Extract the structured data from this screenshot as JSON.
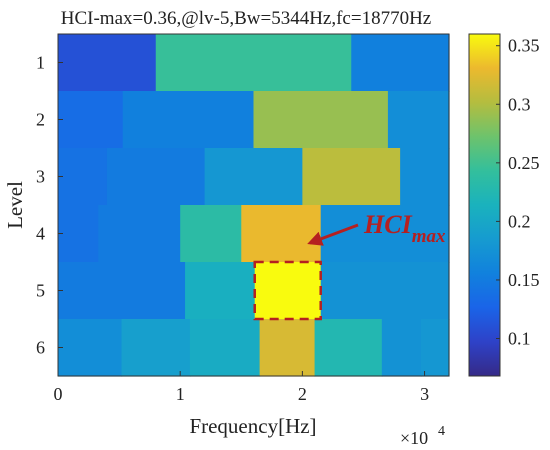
{
  "chart_data": {
    "type": "heatmap",
    "title": "HCI-max=0.36,@lv-5,Bw=5344Hz,fc=18770Hz",
    "xlabel": "Frequency[Hz]",
    "ylabel": "Level",
    "x_multiplier_label": "×10",
    "x_multiplier_exponent": "4",
    "xlim": [
      0,
      32000
    ],
    "ylim": [
      0.5,
      6.5
    ],
    "xticks": [
      {
        "value": 0,
        "label": "0"
      },
      {
        "value": 10000,
        "label": "1"
      },
      {
        "value": 20000,
        "label": "2"
      },
      {
        "value": 30000,
        "label": "3"
      }
    ],
    "yticks": [
      {
        "value": 1,
        "label": "1"
      },
      {
        "value": 2,
        "label": "2"
      },
      {
        "value": 3,
        "label": "3"
      },
      {
        "value": 4,
        "label": "4"
      },
      {
        "value": 5,
        "label": "5"
      },
      {
        "value": 6,
        "label": "6"
      }
    ],
    "colorbar": {
      "colormap": "parula",
      "range": [
        0.068,
        0.36
      ],
      "ticks": [
        {
          "value": 0.1,
          "label": "0.1"
        },
        {
          "value": 0.15,
          "label": "0.15"
        },
        {
          "value": 0.2,
          "label": "0.2"
        },
        {
          "value": 0.25,
          "label": "0.25"
        },
        {
          "value": 0.3,
          "label": "0.3"
        },
        {
          "value": 0.35,
          "label": "0.35"
        }
      ]
    },
    "levels": [
      {
        "level": 1,
        "cells": [
          {
            "x0": 0,
            "x1": 8000,
            "value": 0.11
          },
          {
            "x0": 8000,
            "x1": 24000,
            "value": 0.245
          },
          {
            "x0": 24000,
            "x1": 32000,
            "value": 0.155
          }
        ]
      },
      {
        "level": 2,
        "cells": [
          {
            "x0": 0,
            "x1": 5300,
            "value": 0.135
          },
          {
            "x0": 5300,
            "x1": 16000,
            "value": 0.155
          },
          {
            "x0": 16000,
            "x1": 27000,
            "value": 0.29
          },
          {
            "x0": 27000,
            "x1": 32000,
            "value": 0.17
          }
        ]
      },
      {
        "level": 3,
        "cells": [
          {
            "x0": 0,
            "x1": 4000,
            "value": 0.14
          },
          {
            "x0": 4000,
            "x1": 12000,
            "value": 0.15
          },
          {
            "x0": 12000,
            "x1": 20000,
            "value": 0.18
          },
          {
            "x0": 20000,
            "x1": 28000,
            "value": 0.305
          },
          {
            "x0": 28000,
            "x1": 32000,
            "value": 0.17
          }
        ]
      },
      {
        "level": 4,
        "cells": [
          {
            "x0": 0,
            "x1": 3300,
            "value": 0.14
          },
          {
            "x0": 3300,
            "x1": 10000,
            "value": 0.15
          },
          {
            "x0": 10000,
            "x1": 15000,
            "value": 0.235
          },
          {
            "x0": 15000,
            "x1": 21500,
            "value": 0.33
          },
          {
            "x0": 21500,
            "x1": 32000,
            "value": 0.17
          }
        ]
      },
      {
        "level": 5,
        "cells": [
          {
            "x0": 0,
            "x1": 10400,
            "value": 0.15
          },
          {
            "x0": 10400,
            "x1": 16100,
            "value": 0.21
          },
          {
            "x0": 16100,
            "x1": 21500,
            "value": 0.36
          },
          {
            "x0": 21500,
            "x1": 32000,
            "value": 0.175
          }
        ]
      },
      {
        "level": 6,
        "cells": [
          {
            "x0": 0,
            "x1": 5200,
            "value": 0.17
          },
          {
            "x0": 5200,
            "x1": 10800,
            "value": 0.19
          },
          {
            "x0": 10800,
            "x1": 16500,
            "value": 0.205
          },
          {
            "x0": 16500,
            "x1": 21000,
            "value": 0.32
          },
          {
            "x0": 21000,
            "x1": 26500,
            "value": 0.225
          },
          {
            "x0": 26500,
            "x1": 29700,
            "value": 0.175
          },
          {
            "x0": 29700,
            "x1": 32000,
            "value": 0.18
          }
        ]
      }
    ],
    "annotation": {
      "text": "HCI",
      "subscript": "max",
      "color": "#b52020",
      "target": {
        "level": 5,
        "x0": 16100,
        "x1": 21500
      }
    }
  }
}
